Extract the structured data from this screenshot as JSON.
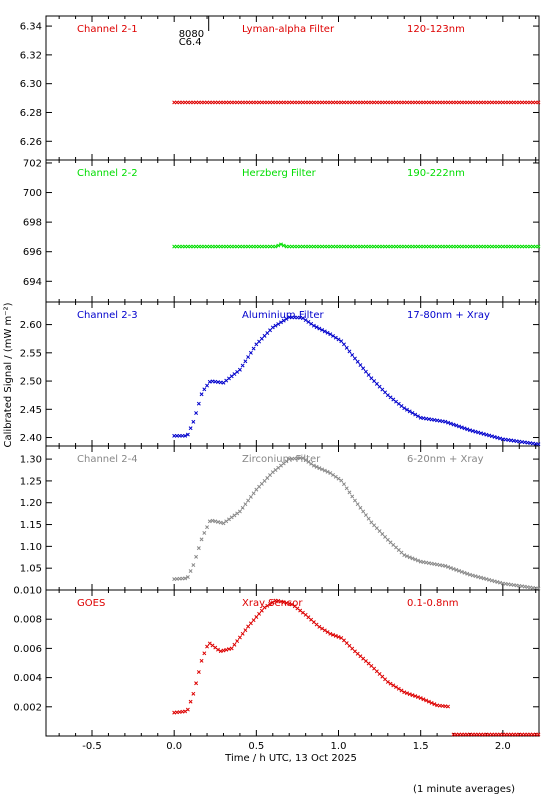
{
  "chart_data": {
    "type": "scatter",
    "xlabel": "Time / h UTC, 13 Oct 2025",
    "ylabel": "Calibrated Signal / (mW m⁻²)",
    "footnote": "(1 minute averages)",
    "xlim": [
      -0.78,
      2.22
    ],
    "x_ticks": [
      -0.5,
      0.0,
      0.5,
      1.0,
      1.5,
      2.0
    ],
    "x_tick_labels": [
      "-0.5",
      "0.0",
      "0.5",
      "1.0",
      "1.5",
      "2.0"
    ],
    "flare_marker": {
      "x": 0.21,
      "labels": [
        "8080",
        "C6.4"
      ]
    },
    "panels": [
      {
        "id": "ch21",
        "name": "Channel 2-1",
        "filter": "Lyman-alpha Filter",
        "band": "120-123nm",
        "color": "#dd0000",
        "ylim": [
          6.247,
          6.347
        ],
        "y_ticks": [
          6.26,
          6.28,
          6.3,
          6.32,
          6.34
        ],
        "y_tick_labels": [
          "6.26",
          "6.28",
          "6.30",
          "6.32",
          "6.34"
        ],
        "x_start": 0.0,
        "x_end": 2.22,
        "profile": [
          [
            0.0,
            6.287
          ],
          [
            1.0,
            6.287
          ],
          [
            2.22,
            6.287
          ]
        ]
      },
      {
        "id": "ch22",
        "name": "Channel 2-2",
        "filter": "Herzberg Filter",
        "band": "190-222nm",
        "color": "#00dd00",
        "ylim": [
          692.6,
          702.2
        ],
        "y_ticks": [
          694,
          696,
          698,
          700,
          702
        ],
        "y_tick_labels": [
          "694",
          "696",
          "698",
          "700",
          "702"
        ],
        "x_start": 0.0,
        "x_end": 2.22,
        "profile": [
          [
            0.0,
            696.35
          ],
          [
            0.62,
            696.35
          ],
          [
            0.65,
            696.5
          ],
          [
            0.68,
            696.35
          ],
          [
            2.22,
            696.35
          ]
        ]
      },
      {
        "id": "ch23",
        "name": "Channel 2-3",
        "filter": "Aluminium Filter",
        "band": "17-80nm + Xray",
        "color": "#0000cc",
        "ylim": [
          2.385,
          2.64
        ],
        "y_ticks": [
          2.4,
          2.45,
          2.5,
          2.55,
          2.6
        ],
        "y_tick_labels": [
          "2.40",
          "2.45",
          "2.50",
          "2.55",
          "2.60"
        ],
        "x_start": 0.0,
        "x_end": 2.22,
        "profile": [
          [
            0.0,
            2.403
          ],
          [
            0.08,
            2.403
          ],
          [
            0.12,
            2.43
          ],
          [
            0.17,
            2.48
          ],
          [
            0.22,
            2.5
          ],
          [
            0.3,
            2.497
          ],
          [
            0.4,
            2.52
          ],
          [
            0.5,
            2.565
          ],
          [
            0.6,
            2.595
          ],
          [
            0.7,
            2.613
          ],
          [
            0.78,
            2.612
          ],
          [
            0.85,
            2.598
          ],
          [
            0.95,
            2.583
          ],
          [
            1.02,
            2.57
          ],
          [
            1.1,
            2.54
          ],
          [
            1.2,
            2.505
          ],
          [
            1.3,
            2.475
          ],
          [
            1.4,
            2.452
          ],
          [
            1.5,
            2.435
          ],
          [
            1.65,
            2.428
          ],
          [
            1.8,
            2.413
          ],
          [
            2.0,
            2.397
          ],
          [
            2.22,
            2.388
          ]
        ]
      },
      {
        "id": "ch24",
        "name": "Channel 2-4",
        "filter": "Zirconium Filter",
        "band": "6-20nm + Xray",
        "color": "#888888",
        "ylim": [
          1.0,
          1.33
        ],
        "y_ticks": [
          1.05,
          1.1,
          1.15,
          1.2,
          1.25,
          1.3
        ],
        "y_tick_labels": [
          "1.05",
          "1.10",
          "1.15",
          "1.20",
          "1.25",
          "1.30"
        ],
        "x_start": 0.0,
        "x_end": 2.22,
        "profile": [
          [
            0.0,
            1.025
          ],
          [
            0.08,
            1.027
          ],
          [
            0.12,
            1.06
          ],
          [
            0.17,
            1.12
          ],
          [
            0.22,
            1.16
          ],
          [
            0.3,
            1.153
          ],
          [
            0.4,
            1.18
          ],
          [
            0.5,
            1.23
          ],
          [
            0.6,
            1.27
          ],
          [
            0.7,
            1.3
          ],
          [
            0.78,
            1.303
          ],
          [
            0.85,
            1.285
          ],
          [
            0.95,
            1.268
          ],
          [
            1.02,
            1.25
          ],
          [
            1.1,
            1.205
          ],
          [
            1.2,
            1.155
          ],
          [
            1.3,
            1.115
          ],
          [
            1.4,
            1.08
          ],
          [
            1.5,
            1.065
          ],
          [
            1.65,
            1.055
          ],
          [
            1.8,
            1.035
          ],
          [
            2.0,
            1.015
          ],
          [
            2.22,
            1.003
          ]
        ]
      },
      {
        "id": "goes",
        "name": "GOES",
        "filter": "Xray Sensor",
        "band": "0.1-0.8nm",
        "color": "#dd0000",
        "ylim": [
          0.0,
          0.01
        ],
        "y_ticks": [
          0.002,
          0.004,
          0.006,
          0.008,
          0.01
        ],
        "y_tick_labels": [
          "0.002",
          "0.004",
          "0.006",
          "0.008",
          "0.010"
        ],
        "x_start": 0.0,
        "x_end": 1.68,
        "profile": [
          [
            0.0,
            0.0016
          ],
          [
            0.08,
            0.0017
          ],
          [
            0.12,
            0.003
          ],
          [
            0.17,
            0.0053
          ],
          [
            0.21,
            0.0064
          ],
          [
            0.28,
            0.0058
          ],
          [
            0.35,
            0.006
          ],
          [
            0.45,
            0.0075
          ],
          [
            0.55,
            0.0088
          ],
          [
            0.62,
            0.0093
          ],
          [
            0.72,
            0.009
          ],
          [
            0.8,
            0.0083
          ],
          [
            0.88,
            0.0075
          ],
          [
            0.95,
            0.007
          ],
          [
            1.02,
            0.0067
          ],
          [
            1.1,
            0.0058
          ],
          [
            1.2,
            0.0048
          ],
          [
            1.3,
            0.0037
          ],
          [
            1.4,
            0.003
          ],
          [
            1.5,
            0.0026
          ],
          [
            1.6,
            0.0021
          ],
          [
            1.68,
            0.002
          ]
        ],
        "tail": {
          "x_start": 1.7,
          "x_end": 2.22,
          "value": 0.0
        }
      }
    ]
  }
}
